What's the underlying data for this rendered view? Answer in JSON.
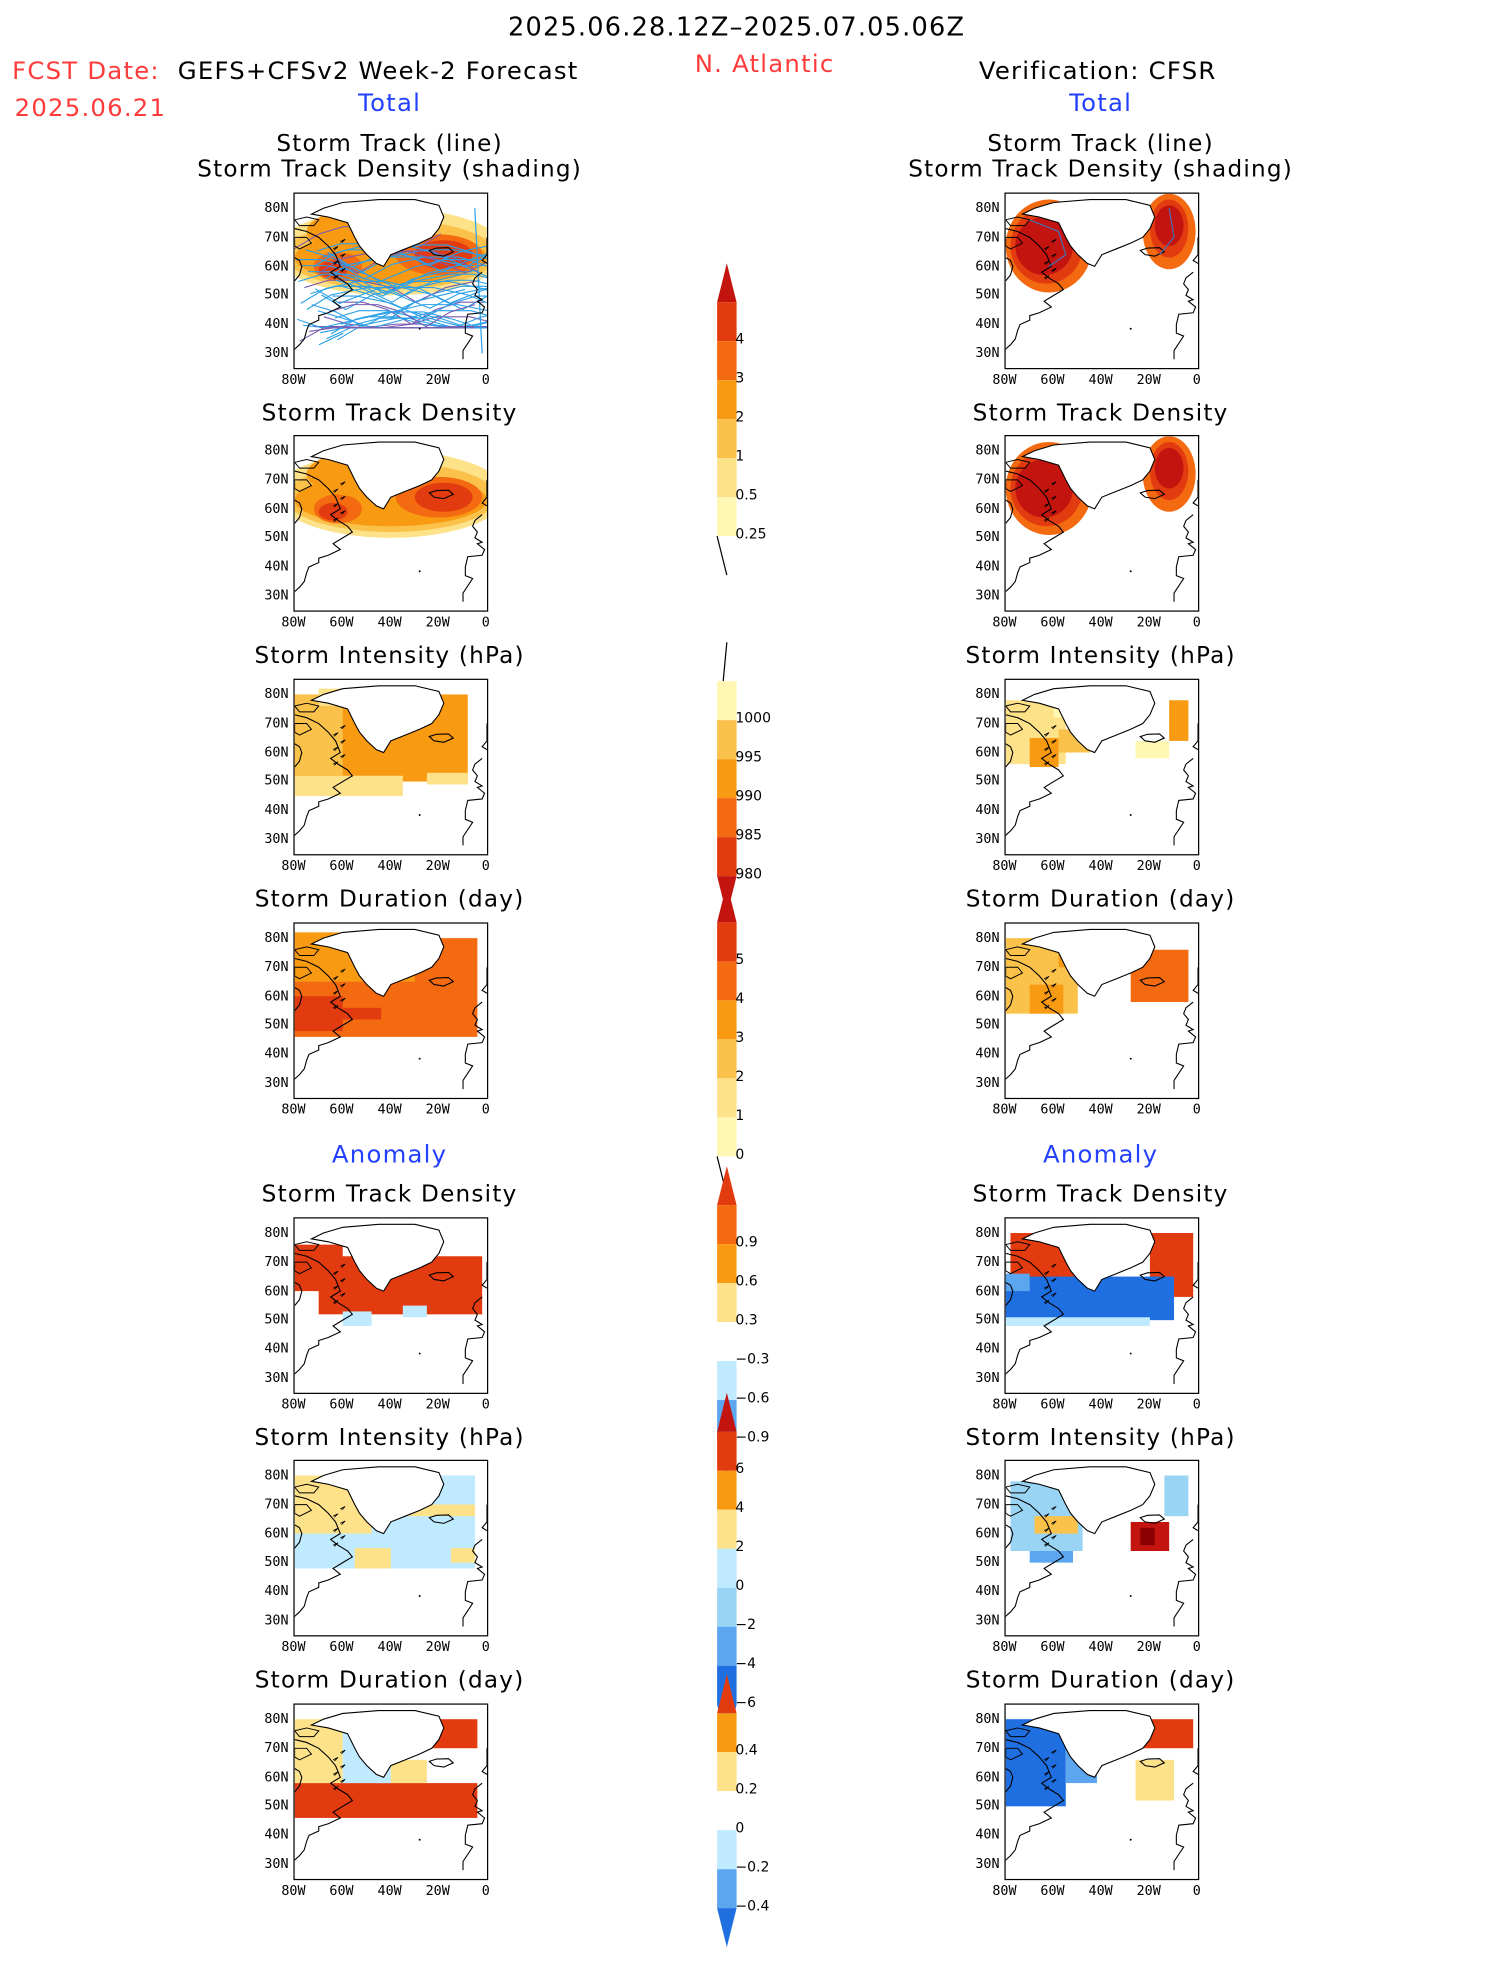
{
  "header": {
    "date_range": "2025.06.28.12Z–2025.07.05.06Z",
    "fcst_label": "FCST Date:",
    "fcst_model": "GEFS+CFSv2 Week-2 Forecast",
    "fcst_date": "2025.06.21",
    "region": "N. Atlantic",
    "verification": "Verification: CFSR"
  },
  "section_labels": {
    "total": "Total",
    "anomaly": "Anomaly"
  },
  "axes": {
    "lat_ticks": [
      "80N",
      "70N",
      "60N",
      "50N",
      "40N",
      "30N"
    ],
    "lon_ticks": [
      "80W",
      "60W",
      "40W",
      "20W",
      "0"
    ]
  },
  "panel_titles": {
    "track_line": "Storm Track (line)",
    "track_density_shading": "Storm Track Density (shading)",
    "track_density": "Storm Track Density",
    "intensity": "Storm Intensity (hPa)",
    "duration": "Storm Duration (day)"
  },
  "colors": {
    "shade_1": "#fff7b3",
    "shade_2": "#fde28a",
    "shade_3": "#fbc24b",
    "shade_4": "#f99a13",
    "shade_5": "#f46a10",
    "shade_6": "#e23b10",
    "shade_7": "#c41410",
    "shade_8": "#8b0000",
    "neg_1": "#bfeaff",
    "neg_2": "#9ad4f5",
    "neg_3": "#5ba6ef",
    "neg_4": "#1f6fe0",
    "track_line": "#2aa0e8",
    "track_dark": "#7a5ab0"
  },
  "chart_data": [
    {
      "type": "heatmap",
      "name": "track_density_total",
      "colorbar_levels": [
        "4",
        "3",
        "2",
        "1",
        "0.5",
        "0.25"
      ]
    },
    {
      "type": "heatmap",
      "name": "intensity_total",
      "colorbar_levels": [
        "1000",
        "995",
        "990",
        "985",
        "980"
      ]
    },
    {
      "type": "heatmap",
      "name": "duration_total",
      "colorbar_levels": [
        "5",
        "4",
        "3",
        "2",
        "1",
        "0"
      ]
    },
    {
      "type": "heatmap",
      "name": "track_density_anomaly",
      "colorbar_levels": [
        "0.9",
        "0.6",
        "0.3",
        "−0.3",
        "−0.6",
        "−0.9"
      ]
    },
    {
      "type": "heatmap",
      "name": "intensity_anomaly",
      "colorbar_levels": [
        "6",
        "4",
        "2",
        "0",
        "−2",
        "−4",
        "−6"
      ]
    },
    {
      "type": "heatmap",
      "name": "duration_anomaly",
      "colorbar_levels": [
        "0.4",
        "0.2",
        "0",
        "−0.2",
        "−0.4"
      ]
    }
  ]
}
